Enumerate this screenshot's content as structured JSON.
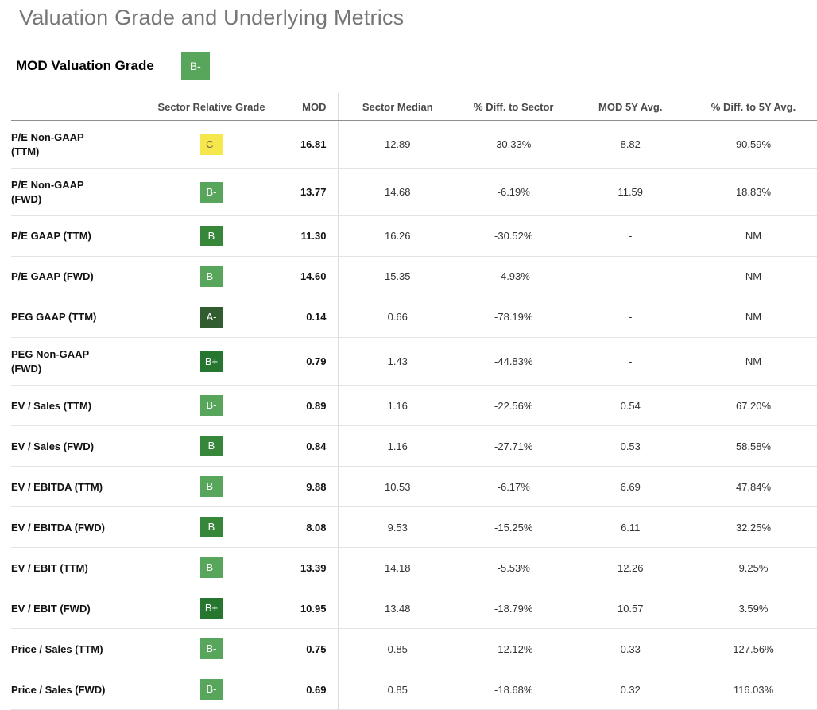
{
  "page": {
    "title": "Valuation Grade and Underlying Metrics",
    "section_label": "MOD Valuation Grade",
    "overall_grade": "B-"
  },
  "table": {
    "headers": [
      "",
      "Sector Relative Grade",
      "MOD",
      "Sector Median",
      "% Diff. to Sector",
      "MOD 5Y Avg.",
      "% Diff. to 5Y Avg."
    ],
    "rows": [
      {
        "metric": "P/E Non-GAAP\n(TTM)",
        "grade": "C-",
        "mod": "16.81",
        "sector_median": "12.89",
        "diff_sector": "30.33%",
        "mod_5y": "8.82",
        "diff_5y": "90.59%"
      },
      {
        "metric": "P/E Non-GAAP\n(FWD)",
        "grade": "B-",
        "mod": "13.77",
        "sector_median": "14.68",
        "diff_sector": "-6.19%",
        "mod_5y": "11.59",
        "diff_5y": "18.83%"
      },
      {
        "metric": "P/E GAAP (TTM)",
        "grade": "B",
        "mod": "11.30",
        "sector_median": "16.26",
        "diff_sector": "-30.52%",
        "mod_5y": "-",
        "diff_5y": "NM"
      },
      {
        "metric": "P/E GAAP (FWD)",
        "grade": "B-",
        "mod": "14.60",
        "sector_median": "15.35",
        "diff_sector": "-4.93%",
        "mod_5y": "-",
        "diff_5y": "NM"
      },
      {
        "metric": "PEG GAAP (TTM)",
        "grade": "A-",
        "mod": "0.14",
        "sector_median": "0.66",
        "diff_sector": "-78.19%",
        "mod_5y": "-",
        "diff_5y": "NM"
      },
      {
        "metric": "PEG Non-GAAP\n(FWD)",
        "grade": "B+",
        "mod": "0.79",
        "sector_median": "1.43",
        "diff_sector": "-44.83%",
        "mod_5y": "-",
        "diff_5y": "NM"
      },
      {
        "metric": "EV / Sales (TTM)",
        "grade": "B-",
        "mod": "0.89",
        "sector_median": "1.16",
        "diff_sector": "-22.56%",
        "mod_5y": "0.54",
        "diff_5y": "67.20%"
      },
      {
        "metric": "EV / Sales (FWD)",
        "grade": "B",
        "mod": "0.84",
        "sector_median": "1.16",
        "diff_sector": "-27.71%",
        "mod_5y": "0.53",
        "diff_5y": "58.58%"
      },
      {
        "metric": "EV / EBITDA (TTM)",
        "grade": "B-",
        "mod": "9.88",
        "sector_median": "10.53",
        "diff_sector": "-6.17%",
        "mod_5y": "6.69",
        "diff_5y": "47.84%"
      },
      {
        "metric": "EV / EBITDA (FWD)",
        "grade": "B",
        "mod": "8.08",
        "sector_median": "9.53",
        "diff_sector": "-15.25%",
        "mod_5y": "6.11",
        "diff_5y": "32.25%"
      },
      {
        "metric": "EV / EBIT (TTM)",
        "grade": "B-",
        "mod": "13.39",
        "sector_median": "14.18",
        "diff_sector": "-5.53%",
        "mod_5y": "12.26",
        "diff_5y": "9.25%"
      },
      {
        "metric": "EV / EBIT (FWD)",
        "grade": "B+",
        "mod": "10.95",
        "sector_median": "13.48",
        "diff_sector": "-18.79%",
        "mod_5y": "10.57",
        "diff_5y": "3.59%"
      },
      {
        "metric": "Price / Sales (TTM)",
        "grade": "B-",
        "mod": "0.75",
        "sector_median": "0.85",
        "diff_sector": "-12.12%",
        "mod_5y": "0.33",
        "diff_5y": "127.56%"
      },
      {
        "metric": "Price / Sales (FWD)",
        "grade": "B-",
        "mod": "0.69",
        "sector_median": "0.85",
        "diff_sector": "-18.68%",
        "mod_5y": "0.32",
        "diff_5y": "116.03%"
      }
    ]
  },
  "colors": {
    "grade_palette": {
      "A-": "#315c2f",
      "B+": "#26762f",
      "B": "#37873b",
      "B-": "#58a55c",
      "C-": "#f6e84c"
    },
    "dark_text_grades": [
      "C-"
    ],
    "title_gray": "#767676",
    "header_text": "#4a4a4a",
    "row_border": "#e3e3e3",
    "header_border": "#8f8f8f"
  }
}
